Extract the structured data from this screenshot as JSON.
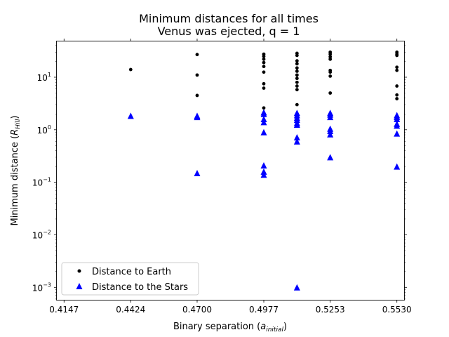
{
  "chart_data": {
    "type": "scatter",
    "title_line1": "Minimum distances for all times",
    "title_line2": "Venus was ejected, q = 1",
    "xlabel_main": "Binary separation (",
    "xlabel_sym": "a",
    "xlabel_sub": "initial",
    "xlabel_close": ")",
    "ylabel_main": "Minimum distance (",
    "ylabel_sym": "R",
    "ylabel_sub": "Hill",
    "ylabel_close": ")",
    "x_scale": "linear",
    "y_scale": "log",
    "xlim": [
      0.4117,
      0.556
    ],
    "ylim": [
      0.00058,
      48
    ],
    "x_ticks": [
      0.4147,
      0.4424,
      0.47,
      0.4977,
      0.5253,
      0.553
    ],
    "x_tick_labels": [
      "0.4147",
      "0.4424",
      "0.4700",
      "0.4977",
      "0.5253",
      "0.5530"
    ],
    "y_major_ticks": [
      0.001,
      0.01,
      0.1,
      1,
      10
    ],
    "y_tick_labels": [
      {
        "base": "10",
        "exp": "−3"
      },
      {
        "base": "10",
        "exp": "−2"
      },
      {
        "base": "10",
        "exp": "−1"
      },
      {
        "base": "10",
        "exp": "0"
      },
      {
        "base": "10",
        "exp": "1"
      }
    ],
    "legend_position": "lower-left",
    "series": [
      {
        "name": "Distance to Earth",
        "marker": "circle",
        "color": "#000000",
        "points": [
          {
            "x": 0.4424,
            "y": 14.0
          },
          {
            "x": 0.47,
            "y": 27.0
          },
          {
            "x": 0.47,
            "y": 11.0
          },
          {
            "x": 0.47,
            "y": 4.5
          },
          {
            "x": 0.4977,
            "y": 27.5
          },
          {
            "x": 0.4977,
            "y": 25.0
          },
          {
            "x": 0.4977,
            "y": 22.0
          },
          {
            "x": 0.4977,
            "y": 19.0
          },
          {
            "x": 0.4977,
            "y": 16.0
          },
          {
            "x": 0.4977,
            "y": 12.5
          },
          {
            "x": 0.4977,
            "y": 7.5
          },
          {
            "x": 0.4977,
            "y": 6.2
          },
          {
            "x": 0.4977,
            "y": 2.6
          },
          {
            "x": 0.5115,
            "y": 28.5
          },
          {
            "x": 0.5115,
            "y": 26.0
          },
          {
            "x": 0.5115,
            "y": 20.5
          },
          {
            "x": 0.5115,
            "y": 18.0
          },
          {
            "x": 0.5115,
            "y": 15.0
          },
          {
            "x": 0.5115,
            "y": 13.0
          },
          {
            "x": 0.5115,
            "y": 11.0
          },
          {
            "x": 0.5115,
            "y": 9.5
          },
          {
            "x": 0.5115,
            "y": 8.0
          },
          {
            "x": 0.5115,
            "y": 6.8
          },
          {
            "x": 0.5115,
            "y": 5.8
          },
          {
            "x": 0.5115,
            "y": 3.0
          },
          {
            "x": 0.5253,
            "y": 30.0
          },
          {
            "x": 0.5253,
            "y": 27.5
          },
          {
            "x": 0.5253,
            "y": 24.5
          },
          {
            "x": 0.5253,
            "y": 22.0
          },
          {
            "x": 0.5253,
            "y": 13.5
          },
          {
            "x": 0.5253,
            "y": 12.5
          },
          {
            "x": 0.5253,
            "y": 10.5
          },
          {
            "x": 0.5253,
            "y": 5.0
          },
          {
            "x": 0.553,
            "y": 30.0
          },
          {
            "x": 0.553,
            "y": 27.5
          },
          {
            "x": 0.553,
            "y": 26.0
          },
          {
            "x": 0.553,
            "y": 15.5
          },
          {
            "x": 0.553,
            "y": 13.5
          },
          {
            "x": 0.553,
            "y": 6.8
          },
          {
            "x": 0.553,
            "y": 4.6
          },
          {
            "x": 0.553,
            "y": 3.9
          }
        ]
      },
      {
        "name": "Distance to the Stars",
        "marker": "triangle",
        "color": "#0000ff",
        "points": [
          {
            "x": 0.4424,
            "y": 1.85
          },
          {
            "x": 0.47,
            "y": 1.85
          },
          {
            "x": 0.47,
            "y": 1.75
          },
          {
            "x": 0.47,
            "y": 0.15
          },
          {
            "x": 0.4977,
            "y": 2.15
          },
          {
            "x": 0.4977,
            "y": 2.0
          },
          {
            "x": 0.4977,
            "y": 1.6
          },
          {
            "x": 0.4977,
            "y": 1.4
          },
          {
            "x": 0.4977,
            "y": 0.9
          },
          {
            "x": 0.4977,
            "y": 0.21
          },
          {
            "x": 0.4977,
            "y": 0.16
          },
          {
            "x": 0.4977,
            "y": 0.14
          },
          {
            "x": 0.5115,
            "y": 2.1
          },
          {
            "x": 0.5115,
            "y": 1.9
          },
          {
            "x": 0.5115,
            "y": 1.7
          },
          {
            "x": 0.5115,
            "y": 1.55
          },
          {
            "x": 0.5115,
            "y": 1.35
          },
          {
            "x": 0.5115,
            "y": 1.25
          },
          {
            "x": 0.5115,
            "y": 0.72
          },
          {
            "x": 0.5115,
            "y": 0.6
          },
          {
            "x": 0.5115,
            "y": 0.001
          },
          {
            "x": 0.5253,
            "y": 2.1
          },
          {
            "x": 0.5253,
            "y": 1.95
          },
          {
            "x": 0.5253,
            "y": 1.75
          },
          {
            "x": 0.5253,
            "y": 1.05
          },
          {
            "x": 0.5253,
            "y": 0.95
          },
          {
            "x": 0.5253,
            "y": 0.82
          },
          {
            "x": 0.5253,
            "y": 0.3
          },
          {
            "x": 0.553,
            "y": 1.9
          },
          {
            "x": 0.553,
            "y": 1.75
          },
          {
            "x": 0.553,
            "y": 1.6
          },
          {
            "x": 0.553,
            "y": 1.3
          },
          {
            "x": 0.553,
            "y": 1.2
          },
          {
            "x": 0.553,
            "y": 0.85
          },
          {
            "x": 0.553,
            "y": 0.2
          }
        ]
      }
    ]
  }
}
